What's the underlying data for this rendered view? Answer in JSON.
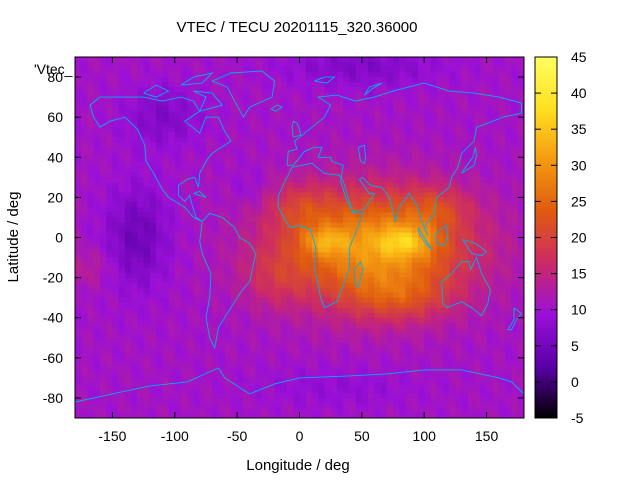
{
  "chart_data": {
    "type": "heatmap",
    "title": "VTEC / TECU 20201115_320.36000",
    "xlabel": "Longitude / deg",
    "ylabel": "Latitude / deg",
    "series_key": "'Vtec_",
    "xlim": [
      -180,
      180
    ],
    "ylim": [
      -90,
      90
    ],
    "xticks": [
      -150,
      -100,
      -50,
      0,
      50,
      100,
      150
    ],
    "yticks": [
      -80,
      -60,
      -40,
      -20,
      0,
      20,
      40,
      60,
      80
    ],
    "colorbar": {
      "min": -5,
      "max": 45,
      "ticks": [
        -5,
        0,
        5,
        10,
        15,
        20,
        25,
        30,
        35,
        40,
        45
      ],
      "palette": [
        "#000000",
        "#5a00a8",
        "#9a10d8",
        "#cc2a66",
        "#e05a10",
        "#f49a10",
        "#ffe020",
        "#ffff60"
      ]
    },
    "grid_resolution_deg": {
      "lon": 5,
      "lat": 2.5
    },
    "background_level": 10.5,
    "features": [
      {
        "name": "equatorial anomaly crest",
        "lon": 20,
        "lat": -2,
        "peak": 38
      },
      {
        "name": "equatorial anomaly crest",
        "lon": 85,
        "lat": -2,
        "peak": 40
      },
      {
        "name": "low TEC region",
        "lon": -130,
        "lat": 0,
        "peak": 5
      },
      {
        "name": "arctic depletion",
        "lon": 50,
        "lat": 80,
        "peak": 7
      },
      {
        "name": "south atlantic enhancement",
        "lon": -20,
        "lat": -20,
        "peak": 17
      }
    ],
    "coastline_color": "#00b0e8"
  }
}
